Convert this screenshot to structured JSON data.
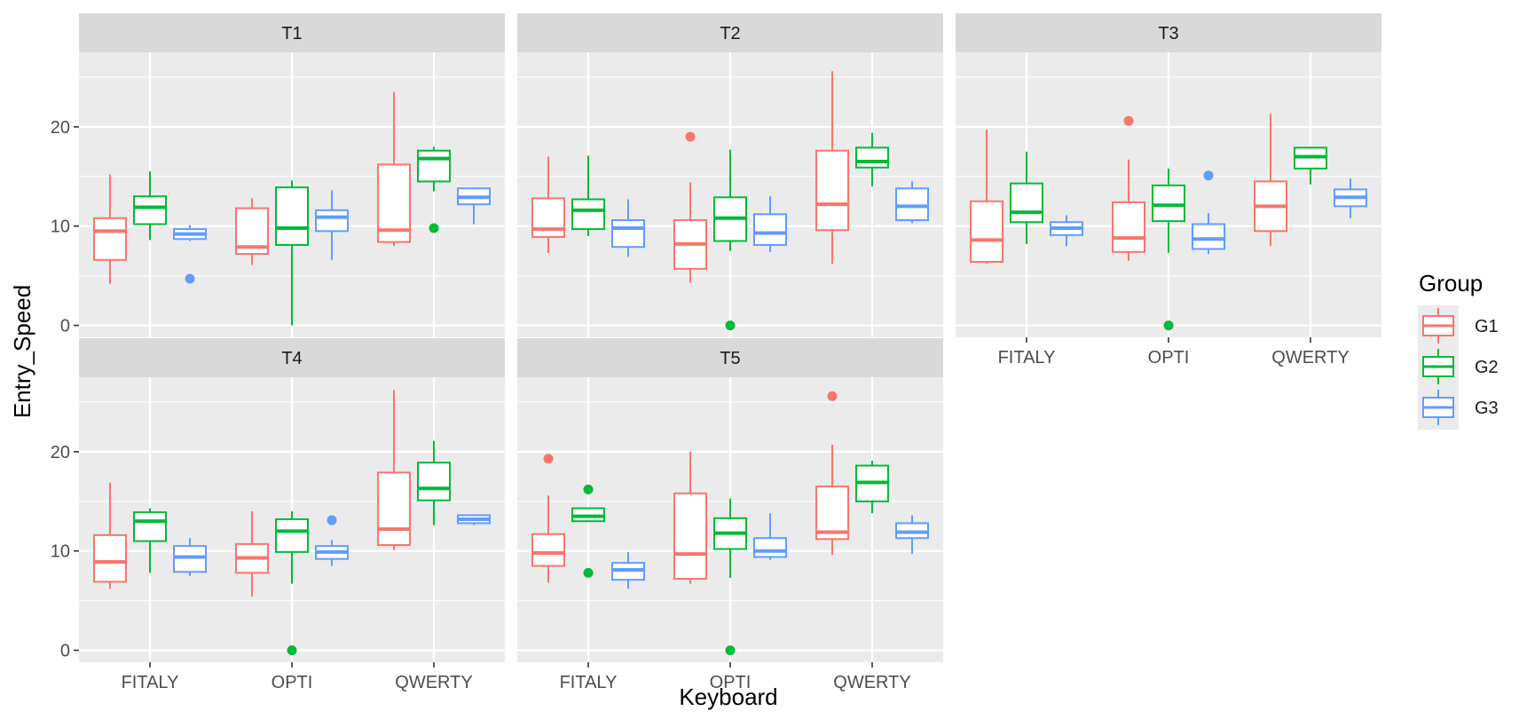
{
  "chart_data": {
    "type": "boxplot",
    "facet_by": "Task",
    "panels": [
      "T1",
      "T2",
      "T3",
      "T4",
      "T5"
    ],
    "categories": [
      "FITALY",
      "OPTI",
      "QWERTY"
    ],
    "xlabel": "Keyboard",
    "ylabel": "Entry_Speed",
    "ylim": [
      -1.2,
      27.5
    ],
    "yticks": [
      0,
      10,
      20
    ],
    "legend": {
      "title": "Group",
      "position": "right",
      "entries": [
        {
          "label": "G1",
          "color": "#F8766D"
        },
        {
          "label": "G2",
          "color": "#00BA38"
        },
        {
          "label": "G3",
          "color": "#619CFF"
        }
      ]
    },
    "boxes": {
      "T1": {
        "FITALY": [
          {
            "group": "G1",
            "min": 4.2,
            "q1": 6.6,
            "median": 9.5,
            "q3": 10.8,
            "max": 15.2,
            "outliers": []
          },
          {
            "group": "G2",
            "min": 8.6,
            "q1": 10.2,
            "median": 11.9,
            "q3": 13.0,
            "max": 15.5,
            "outliers": []
          },
          {
            "group": "G3",
            "min": 8.5,
            "q1": 8.7,
            "median": 9.2,
            "q3": 9.7,
            "max": 10.1,
            "outliers": [
              4.7
            ]
          }
        ],
        "OPTI": [
          {
            "group": "G1",
            "min": 6.1,
            "q1": 7.2,
            "median": 7.9,
            "q3": 11.8,
            "max": 12.8,
            "outliers": []
          },
          {
            "group": "G2",
            "min": 0.0,
            "q1": 8.1,
            "median": 9.8,
            "q3": 13.9,
            "max": 14.6,
            "outliers": []
          },
          {
            "group": "G3",
            "min": 6.6,
            "q1": 9.5,
            "median": 10.9,
            "q3": 11.6,
            "max": 13.6,
            "outliers": []
          }
        ],
        "QWERTY": [
          {
            "group": "G1",
            "min": 8.0,
            "q1": 8.4,
            "median": 9.6,
            "q3": 16.2,
            "max": 23.5,
            "outliers": []
          },
          {
            "group": "G2",
            "min": 13.5,
            "q1": 14.5,
            "median": 16.8,
            "q3": 17.6,
            "max": 18.0,
            "outliers": [
              9.8
            ]
          },
          {
            "group": "G3",
            "min": 10.2,
            "q1": 12.2,
            "median": 12.9,
            "q3": 13.8,
            "max": 13.9,
            "outliers": []
          }
        ]
      },
      "T2": {
        "FITALY": [
          {
            "group": "G1",
            "min": 7.3,
            "q1": 8.9,
            "median": 9.7,
            "q3": 12.8,
            "max": 17.0,
            "outliers": []
          },
          {
            "group": "G2",
            "min": 9.0,
            "q1": 9.7,
            "median": 11.6,
            "q3": 12.7,
            "max": 17.1,
            "outliers": []
          },
          {
            "group": "G3",
            "min": 6.9,
            "q1": 7.9,
            "median": 9.8,
            "q3": 10.6,
            "max": 12.7,
            "outliers": []
          }
        ],
        "OPTI": [
          {
            "group": "G1",
            "min": 4.3,
            "q1": 5.7,
            "median": 8.2,
            "q3": 10.6,
            "max": 14.4,
            "outliers": [
              19.0
            ]
          },
          {
            "group": "G2",
            "min": 7.5,
            "q1": 8.5,
            "median": 10.8,
            "q3": 12.9,
            "max": 17.7,
            "outliers": [
              0.0
            ]
          },
          {
            "group": "G3",
            "min": 7.4,
            "q1": 8.1,
            "median": 9.3,
            "q3": 11.2,
            "max": 13.0,
            "outliers": []
          }
        ],
        "QWERTY": [
          {
            "group": "G1",
            "min": 6.2,
            "q1": 9.6,
            "median": 12.2,
            "q3": 17.6,
            "max": 25.6,
            "outliers": []
          },
          {
            "group": "G2",
            "min": 14.0,
            "q1": 15.9,
            "median": 16.5,
            "q3": 17.9,
            "max": 19.4,
            "outliers": []
          },
          {
            "group": "G3",
            "min": 10.3,
            "q1": 10.6,
            "median": 12.0,
            "q3": 13.8,
            "max": 14.5,
            "outliers": []
          }
        ]
      },
      "T3": {
        "FITALY": [
          {
            "group": "G1",
            "min": 6.2,
            "q1": 6.4,
            "median": 8.6,
            "q3": 12.5,
            "max": 19.7,
            "outliers": []
          },
          {
            "group": "G2",
            "min": 8.2,
            "q1": 10.4,
            "median": 11.4,
            "q3": 14.3,
            "max": 17.5,
            "outliers": []
          },
          {
            "group": "G3",
            "min": 8.0,
            "q1": 9.1,
            "median": 9.8,
            "q3": 10.4,
            "max": 11.1,
            "outliers": []
          }
        ],
        "OPTI": [
          {
            "group": "G1",
            "min": 6.5,
            "q1": 7.4,
            "median": 8.8,
            "q3": 12.4,
            "max": 16.7,
            "outliers": [
              20.6
            ]
          },
          {
            "group": "G2",
            "min": 7.3,
            "q1": 10.5,
            "median": 12.1,
            "q3": 14.1,
            "max": 15.8,
            "outliers": [
              0.0
            ]
          },
          {
            "group": "G3",
            "min": 7.2,
            "q1": 7.7,
            "median": 8.7,
            "q3": 10.2,
            "max": 11.3,
            "outliers": [
              15.1
            ]
          }
        ],
        "QWERTY": [
          {
            "group": "G1",
            "min": 8.0,
            "q1": 9.5,
            "median": 12.0,
            "q3": 14.5,
            "max": 21.3,
            "outliers": []
          },
          {
            "group": "G2",
            "min": 14.2,
            "q1": 15.8,
            "median": 17.0,
            "q3": 17.9,
            "max": 18.0,
            "outliers": []
          },
          {
            "group": "G3",
            "min": 10.8,
            "q1": 12.0,
            "median": 12.9,
            "q3": 13.7,
            "max": 14.8,
            "outliers": []
          }
        ]
      },
      "T4": {
        "FITALY": [
          {
            "group": "G1",
            "min": 6.2,
            "q1": 6.9,
            "median": 8.9,
            "q3": 11.6,
            "max": 16.9,
            "outliers": []
          },
          {
            "group": "G2",
            "min": 7.8,
            "q1": 11.0,
            "median": 13.0,
            "q3": 13.9,
            "max": 14.3,
            "outliers": []
          },
          {
            "group": "G3",
            "min": 7.5,
            "q1": 7.9,
            "median": 9.4,
            "q3": 10.5,
            "max": 11.3,
            "outliers": []
          }
        ],
        "OPTI": [
          {
            "group": "G1",
            "min": 5.4,
            "q1": 7.8,
            "median": 9.3,
            "q3": 10.7,
            "max": 14.0,
            "outliers": []
          },
          {
            "group": "G2",
            "min": 6.7,
            "q1": 9.9,
            "median": 12.0,
            "q3": 13.2,
            "max": 14.0,
            "outliers": [
              0.0
            ]
          },
          {
            "group": "G3",
            "min": 8.5,
            "q1": 9.2,
            "median": 9.9,
            "q3": 10.5,
            "max": 11.1,
            "outliers": [
              13.1
            ]
          }
        ],
        "QWERTY": [
          {
            "group": "G1",
            "min": 10.1,
            "q1": 10.6,
            "median": 12.2,
            "q3": 17.9,
            "max": 26.2,
            "outliers": []
          },
          {
            "group": "G2",
            "min": 12.6,
            "q1": 15.1,
            "median": 16.3,
            "q3": 18.9,
            "max": 21.1,
            "outliers": []
          },
          {
            "group": "G3",
            "min": 12.6,
            "q1": 12.8,
            "median": 13.2,
            "q3": 13.6,
            "max": 13.7,
            "outliers": []
          }
        ]
      },
      "T5": {
        "FITALY": [
          {
            "group": "G1",
            "min": 6.8,
            "q1": 8.5,
            "median": 9.8,
            "q3": 11.7,
            "max": 15.6,
            "outliers": [
              19.3
            ]
          },
          {
            "group": "G2",
            "min": 13.0,
            "q1": 13.0,
            "median": 13.5,
            "q3": 14.3,
            "max": 14.3,
            "outliers": [
              16.2,
              7.8
            ]
          },
          {
            "group": "G3",
            "min": 6.2,
            "q1": 7.1,
            "median": 8.1,
            "q3": 8.8,
            "max": 9.9,
            "outliers": []
          }
        ],
        "OPTI": [
          {
            "group": "G1",
            "min": 6.7,
            "q1": 7.2,
            "median": 9.7,
            "q3": 15.8,
            "max": 20.0,
            "outliers": []
          },
          {
            "group": "G2",
            "min": 7.3,
            "q1": 10.2,
            "median": 11.8,
            "q3": 13.3,
            "max": 15.3,
            "outliers": [
              0.0
            ]
          },
          {
            "group": "G3",
            "min": 9.1,
            "q1": 9.4,
            "median": 10.0,
            "q3": 11.3,
            "max": 13.8,
            "outliers": []
          }
        ],
        "QWERTY": [
          {
            "group": "G1",
            "min": 9.6,
            "q1": 11.2,
            "median": 11.9,
            "q3": 16.5,
            "max": 20.7,
            "outliers": [
              25.6
            ]
          },
          {
            "group": "G2",
            "min": 13.8,
            "q1": 15.0,
            "median": 16.9,
            "q3": 18.6,
            "max": 19.1,
            "outliers": []
          },
          {
            "group": "G3",
            "min": 9.7,
            "q1": 11.3,
            "median": 11.9,
            "q3": 12.8,
            "max": 13.6,
            "outliers": []
          }
        ]
      }
    }
  }
}
